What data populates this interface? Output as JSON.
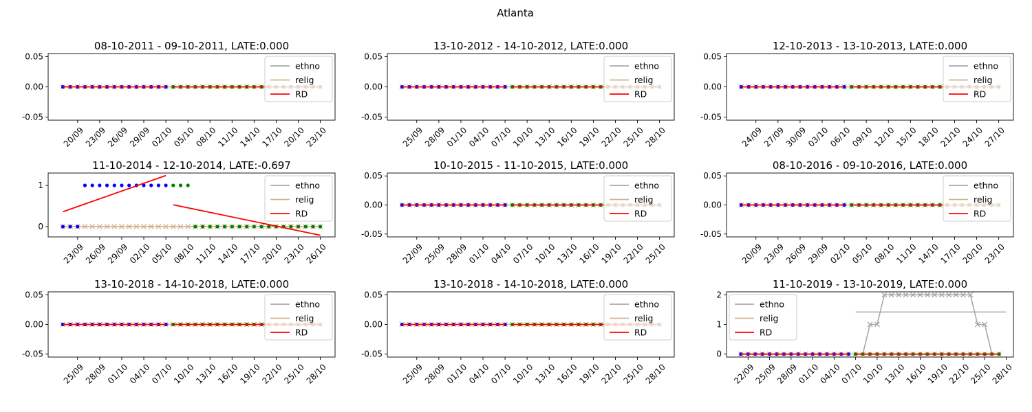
{
  "figure": {
    "title": "Atlanta"
  },
  "legend_labels": [
    "ethno",
    "relig",
    "RD"
  ],
  "colors": {
    "ethno": "#a9a9a9",
    "relig": "#d2b48c",
    "rd": "#ff0000",
    "before_points": "#0000ff",
    "after_points": "#008000",
    "axes": "#000000"
  },
  "chart_data": [
    {
      "type": "line",
      "title": "08-10-2011 - 09-10-2011, LATE:0.000",
      "x_start": "2011-09-18",
      "cut": "2011-10-03",
      "x_end": "2011-10-23",
      "xlim": [
        "2011-09-16",
        "2011-10-25"
      ],
      "ylim": [
        -0.055,
        0.055
      ],
      "yticks": [
        "0.05",
        "0.00",
        "-0.05"
      ],
      "yticks_values": [
        0.05,
        0.0,
        -0.05
      ],
      "xticks": [
        "20/09",
        "23/09",
        "26/09",
        "29/09",
        "02/10",
        "05/10",
        "08/10",
        "11/10",
        "14/10",
        "17/10",
        "20/10",
        "23/10"
      ],
      "xticks_dates": [
        "2011-09-20",
        "2011-09-23",
        "2011-09-26",
        "2011-09-29",
        "2011-10-02",
        "2011-10-05",
        "2011-10-08",
        "2011-10-11",
        "2011-10-14",
        "2011-10-17",
        "2011-10-20",
        "2011-10-23"
      ],
      "legend_loc": "upper right",
      "ethno": [
        {
          "from": "2011-09-18",
          "to": "2011-10-23",
          "value": 0
        }
      ],
      "before_points_value": 0,
      "after_points_value": 0,
      "rd": [
        {
          "x": [
            "2011-09-18",
            "2011-10-02"
          ],
          "y": [
            0,
            0
          ]
        },
        {
          "x": [
            "2011-10-03",
            "2011-10-23"
          ],
          "y": [
            0,
            0
          ]
        }
      ]
    },
    {
      "type": "line",
      "title": "13-10-2012 - 14-10-2012, LATE:0.000",
      "x_start": "2012-09-23",
      "cut": "2012-10-08",
      "x_end": "2012-10-28",
      "xlim": [
        "2012-09-21",
        "2012-10-30"
      ],
      "ylim": [
        -0.055,
        0.055
      ],
      "yticks": [
        "0.05",
        "0.00",
        "-0.05"
      ],
      "yticks_values": [
        0.05,
        0.0,
        -0.05
      ],
      "xticks": [
        "25/09",
        "28/09",
        "01/10",
        "04/10",
        "07/10",
        "10/10",
        "13/10",
        "16/10",
        "19/10",
        "22/10",
        "25/10",
        "28/10"
      ],
      "xticks_dates": [
        "2012-09-25",
        "2012-09-28",
        "2012-10-01",
        "2012-10-04",
        "2012-10-07",
        "2012-10-10",
        "2012-10-13",
        "2012-10-16",
        "2012-10-19",
        "2012-10-22",
        "2012-10-25",
        "2012-10-28"
      ],
      "legend_loc": "upper right",
      "ethno": [
        {
          "from": "2012-09-23",
          "to": "2012-10-28",
          "value": 0
        }
      ],
      "before_points_value": 0,
      "after_points_value": 0,
      "rd": [
        {
          "x": [
            "2012-09-23",
            "2012-10-07"
          ],
          "y": [
            0,
            0
          ]
        },
        {
          "x": [
            "2012-10-08",
            "2012-10-28"
          ],
          "y": [
            0,
            0
          ]
        }
      ]
    },
    {
      "type": "line",
      "title": "12-10-2013 - 13-10-2013, LATE:0.000",
      "x_start": "2013-09-22",
      "cut": "2013-10-07",
      "x_end": "2013-10-27",
      "xlim": [
        "2013-09-20",
        "2013-10-29"
      ],
      "ylim": [
        -0.055,
        0.055
      ],
      "yticks": [
        "0.05",
        "0.00",
        "-0.05"
      ],
      "yticks_values": [
        0.05,
        0.0,
        -0.05
      ],
      "xticks": [
        "24/09",
        "27/09",
        "30/09",
        "03/10",
        "06/10",
        "09/10",
        "12/10",
        "15/10",
        "18/10",
        "21/10",
        "24/10",
        "27/10"
      ],
      "xticks_dates": [
        "2013-09-24",
        "2013-09-27",
        "2013-09-30",
        "2013-10-03",
        "2013-10-06",
        "2013-10-09",
        "2013-10-12",
        "2013-10-15",
        "2013-10-18",
        "2013-10-21",
        "2013-10-24",
        "2013-10-27"
      ],
      "legend_loc": "upper right",
      "ethno": [
        {
          "from": "2013-09-22",
          "to": "2013-10-27",
          "value": 0
        }
      ],
      "before_points_value": 0,
      "after_points_value": 0,
      "rd": [
        {
          "x": [
            "2013-09-22",
            "2013-10-06"
          ],
          "y": [
            0,
            0
          ]
        },
        {
          "x": [
            "2013-10-07",
            "2013-10-27"
          ],
          "y": [
            0,
            0
          ]
        }
      ]
    },
    {
      "type": "line",
      "title": "11-10-2014 - 12-10-2014, LATE:-0.697",
      "x_start": "2014-09-21",
      "cut": "2014-10-06",
      "x_end": "2014-10-26",
      "xlim": [
        "2014-09-19",
        "2014-10-28"
      ],
      "ylim": [
        -0.25,
        1.3
      ],
      "yticks": [
        "1",
        "0"
      ],
      "yticks_values": [
        1,
        0
      ],
      "xticks": [
        "23/09",
        "26/09",
        "29/09",
        "02/10",
        "05/10",
        "08/10",
        "11/10",
        "14/10",
        "17/10",
        "20/10",
        "23/10",
        "26/10"
      ],
      "xticks_dates": [
        "2014-09-23",
        "2014-09-26",
        "2014-09-29",
        "2014-10-02",
        "2014-10-05",
        "2014-10-08",
        "2014-10-11",
        "2014-10-14",
        "2014-10-17",
        "2014-10-20",
        "2014-10-23",
        "2014-10-26"
      ],
      "legend_loc": "upper right",
      "ethno": [
        {
          "from": "2014-09-21",
          "to": "2014-10-26",
          "value": 0
        }
      ],
      "before_points": {
        "x": [
          "2014-09-21",
          "2014-09-22",
          "2014-09-23",
          "2014-09-24",
          "2014-09-25",
          "2014-09-26",
          "2014-09-27",
          "2014-09-28",
          "2014-09-29",
          "2014-09-30",
          "2014-10-01",
          "2014-10-02",
          "2014-10-03",
          "2014-10-04",
          "2014-10-05"
        ],
        "y": [
          0,
          0,
          0,
          1,
          1,
          1,
          1,
          1,
          1,
          1,
          1,
          1,
          1,
          1,
          1
        ]
      },
      "after_points": {
        "x": [
          "2014-10-06",
          "2014-10-07",
          "2014-10-08",
          "2014-10-09",
          "2014-10-10",
          "2014-10-11",
          "2014-10-12",
          "2014-10-13",
          "2014-10-14",
          "2014-10-15",
          "2014-10-16",
          "2014-10-17",
          "2014-10-18",
          "2014-10-19",
          "2014-10-20",
          "2014-10-21",
          "2014-10-22",
          "2014-10-23",
          "2014-10-24",
          "2014-10-25",
          "2014-10-26"
        ],
        "y": [
          1,
          1,
          1,
          0,
          0,
          0,
          0,
          0,
          0,
          0,
          0,
          0,
          0,
          0,
          0,
          0,
          0,
          0,
          0,
          0,
          0
        ]
      },
      "rd": [
        {
          "x": [
            "2014-09-21",
            "2014-10-05"
          ],
          "y": [
            0.36,
            1.24
          ]
        },
        {
          "x": [
            "2014-10-06",
            "2014-10-26"
          ],
          "y": [
            0.53,
            -0.21
          ]
        }
      ]
    },
    {
      "type": "line",
      "title": "10-10-2015 - 11-10-2015, LATE:0.000",
      "x_start": "2015-09-20",
      "cut": "2015-10-05",
      "x_end": "2015-10-25",
      "xlim": [
        "2015-09-18",
        "2015-10-27"
      ],
      "ylim": [
        -0.055,
        0.055
      ],
      "yticks": [
        "0.05",
        "0.00",
        "-0.05"
      ],
      "yticks_values": [
        0.05,
        0.0,
        -0.05
      ],
      "xticks": [
        "22/09",
        "25/09",
        "28/09",
        "01/10",
        "04/10",
        "07/10",
        "10/10",
        "13/10",
        "16/10",
        "19/10",
        "22/10",
        "25/10"
      ],
      "xticks_dates": [
        "2015-09-22",
        "2015-09-25",
        "2015-09-28",
        "2015-10-01",
        "2015-10-04",
        "2015-10-07",
        "2015-10-10",
        "2015-10-13",
        "2015-10-16",
        "2015-10-19",
        "2015-10-22",
        "2015-10-25"
      ],
      "legend_loc": "upper right",
      "ethno": [
        {
          "from": "2015-09-20",
          "to": "2015-10-25",
          "value": 0
        }
      ],
      "before_points_value": 0,
      "after_points_value": 0,
      "rd": [
        {
          "x": [
            "2015-09-20",
            "2015-10-04"
          ],
          "y": [
            0,
            0
          ]
        },
        {
          "x": [
            "2015-10-05",
            "2015-10-25"
          ],
          "y": [
            0,
            0
          ]
        }
      ]
    },
    {
      "type": "line",
      "title": "08-10-2016 - 09-10-2016, LATE:0.000",
      "x_start": "2016-09-18",
      "cut": "2016-10-03",
      "x_end": "2016-10-23",
      "xlim": [
        "2016-09-16",
        "2016-10-25"
      ],
      "ylim": [
        -0.055,
        0.055
      ],
      "yticks": [
        "0.05",
        "0.00",
        "-0.05"
      ],
      "yticks_values": [
        0.05,
        0.0,
        -0.05
      ],
      "xticks": [
        "20/09",
        "23/09",
        "26/09",
        "29/09",
        "02/10",
        "05/10",
        "08/10",
        "11/10",
        "14/10",
        "17/10",
        "20/10",
        "23/10"
      ],
      "xticks_dates": [
        "2016-09-20",
        "2016-09-23",
        "2016-09-26",
        "2016-09-29",
        "2016-10-02",
        "2016-10-05",
        "2016-10-08",
        "2016-10-11",
        "2016-10-14",
        "2016-10-17",
        "2016-10-20",
        "2016-10-23"
      ],
      "legend_loc": "upper right",
      "ethno": [
        {
          "from": "2016-09-18",
          "to": "2016-10-23",
          "value": 0
        }
      ],
      "before_points_value": 0,
      "after_points_value": 0,
      "rd": [
        {
          "x": [
            "2016-09-18",
            "2016-10-02"
          ],
          "y": [
            0,
            0
          ]
        },
        {
          "x": [
            "2016-10-03",
            "2016-10-23"
          ],
          "y": [
            0,
            0
          ]
        }
      ]
    },
    {
      "type": "line",
      "title": "13-10-2018 - 14-10-2018, LATE:0.000",
      "x_start": "2018-09-23",
      "cut": "2018-10-08",
      "x_end": "2018-10-28",
      "xlim": [
        "2018-09-21",
        "2018-10-30"
      ],
      "ylim": [
        -0.055,
        0.055
      ],
      "yticks": [
        "0.05",
        "0.00",
        "-0.05"
      ],
      "yticks_values": [
        0.05,
        0.0,
        -0.05
      ],
      "xticks": [
        "25/09",
        "28/09",
        "01/10",
        "04/10",
        "07/10",
        "10/10",
        "13/10",
        "16/10",
        "19/10",
        "22/10",
        "25/10",
        "28/10"
      ],
      "xticks_dates": [
        "2018-09-25",
        "2018-09-28",
        "2018-10-01",
        "2018-10-04",
        "2018-10-07",
        "2018-10-10",
        "2018-10-13",
        "2018-10-16",
        "2018-10-19",
        "2018-10-22",
        "2018-10-25",
        "2018-10-28"
      ],
      "legend_loc": "upper right",
      "ethno": [
        {
          "from": "2018-09-23",
          "to": "2018-10-28",
          "value": 0
        }
      ],
      "before_points_value": 0,
      "after_points_value": 0,
      "rd": [
        {
          "x": [
            "2018-09-23",
            "2018-10-07"
          ],
          "y": [
            0,
            0
          ]
        },
        {
          "x": [
            "2018-10-08",
            "2018-10-28"
          ],
          "y": [
            0,
            0
          ]
        }
      ]
    },
    {
      "type": "line",
      "title": "13-10-2018 - 14-10-2018, LATE:0.000",
      "x_start": "2018-09-23",
      "cut": "2018-10-08",
      "x_end": "2018-10-28",
      "xlim": [
        "2018-09-21",
        "2018-10-30"
      ],
      "ylim": [
        -0.055,
        0.055
      ],
      "yticks": [
        "0.05",
        "0.00",
        "-0.05"
      ],
      "yticks_values": [
        0.05,
        0.0,
        -0.05
      ],
      "xticks": [
        "25/09",
        "28/09",
        "01/10",
        "04/10",
        "07/10",
        "10/10",
        "13/10",
        "16/10",
        "19/10",
        "22/10",
        "25/10",
        "28/10"
      ],
      "xticks_dates": [
        "2018-09-25",
        "2018-09-28",
        "2018-10-01",
        "2018-10-04",
        "2018-10-07",
        "2018-10-10",
        "2018-10-13",
        "2018-10-16",
        "2018-10-19",
        "2018-10-22",
        "2018-10-25",
        "2018-10-28"
      ],
      "legend_loc": "upper right",
      "ethno": [
        {
          "from": "2018-09-23",
          "to": "2018-10-28",
          "value": 0
        }
      ],
      "before_points_value": 0,
      "after_points_value": 0,
      "rd": [
        {
          "x": [
            "2018-09-23",
            "2018-10-07"
          ],
          "y": [
            0,
            0
          ]
        },
        {
          "x": [
            "2018-10-08",
            "2018-10-28"
          ],
          "y": [
            0,
            0
          ]
        }
      ]
    },
    {
      "type": "line",
      "title": "11-10-2019 - 13-10-2019, LATE:0.000",
      "x_start": "2019-09-21",
      "cut": "2019-10-07",
      "x_end": "2019-10-27",
      "xlim": [
        "2019-09-19",
        "2019-10-29"
      ],
      "ylim": [
        -0.1,
        2.1
      ],
      "yticks": [
        "2",
        "1",
        "0"
      ],
      "yticks_values": [
        2,
        1,
        0
      ],
      "xticks": [
        "22/09",
        "25/09",
        "28/09",
        "01/10",
        "04/10",
        "07/10",
        "10/10",
        "13/10",
        "16/10",
        "19/10",
        "22/10",
        "25/10",
        "28/10"
      ],
      "xticks_dates": [
        "2019-09-22",
        "2019-09-25",
        "2019-09-28",
        "2019-10-01",
        "2019-10-04",
        "2019-10-07",
        "2019-10-10",
        "2019-10-13",
        "2019-10-16",
        "2019-10-19",
        "2019-10-22",
        "2019-10-25",
        "2019-10-28"
      ],
      "legend_loc": "upper left",
      "ethno": [
        {
          "from": "2019-09-21",
          "to": "2019-10-06",
          "value": 0
        },
        {
          "from": "2019-10-07",
          "to": "2019-10-28",
          "value": 1.42
        }
      ],
      "ethno_series": {
        "x": [
          "2019-09-21",
          "2019-09-22",
          "2019-09-23",
          "2019-09-24",
          "2019-09-25",
          "2019-09-26",
          "2019-09-27",
          "2019-09-28",
          "2019-09-29",
          "2019-09-30",
          "2019-10-01",
          "2019-10-02",
          "2019-10-03",
          "2019-10-04",
          "2019-10-05",
          "2019-10-06",
          "2019-10-07",
          "2019-10-08",
          "2019-10-09",
          "2019-10-10",
          "2019-10-11",
          "2019-10-12",
          "2019-10-13",
          "2019-10-14",
          "2019-10-15",
          "2019-10-16",
          "2019-10-17",
          "2019-10-18",
          "2019-10-19",
          "2019-10-20",
          "2019-10-21",
          "2019-10-22",
          "2019-10-23",
          "2019-10-24",
          "2019-10-25",
          "2019-10-26",
          "2019-10-27"
        ],
        "y": [
          0,
          0,
          0,
          0,
          0,
          0,
          0,
          0,
          0,
          0,
          0,
          0,
          0,
          0,
          0,
          0,
          0,
          0,
          1,
          1,
          2,
          2,
          2,
          2,
          2,
          2,
          2,
          2,
          2,
          2,
          2,
          2,
          2,
          1,
          1,
          0,
          0
        ]
      },
      "before_points_value": 0,
      "after_points_value": 0,
      "rd": [
        {
          "x": [
            "2019-09-21",
            "2019-10-06"
          ],
          "y": [
            0,
            0
          ]
        },
        {
          "x": [
            "2019-10-07",
            "2019-10-27"
          ],
          "y": [
            0,
            0
          ]
        }
      ]
    }
  ]
}
